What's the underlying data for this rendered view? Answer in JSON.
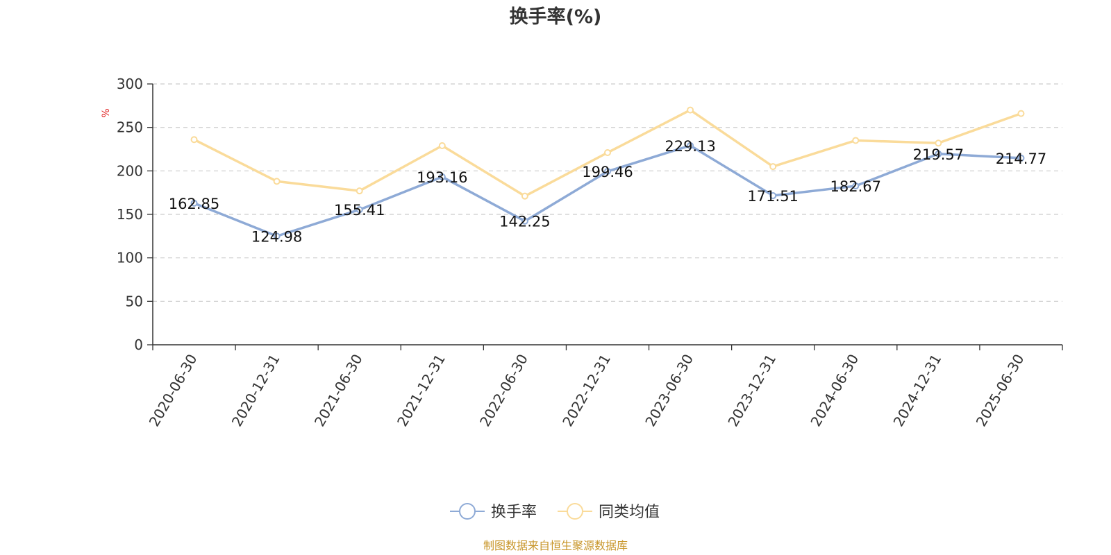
{
  "title": "换手率(%)",
  "source_note": "制图数据来自恒生聚源数据库",
  "colors": {
    "series_turnover": "#8eaad6",
    "series_peer_avg": "#fadb9a",
    "unit_label": "#e02020",
    "source_note": "#c8962a",
    "axis": "#333333",
    "grid": "#cccccc"
  },
  "chart_data": {
    "type": "line",
    "title": "换手率(%)",
    "ylabel": "%",
    "xlabel": "",
    "ylim": [
      0,
      300
    ],
    "yticks": [
      0,
      50,
      100,
      150,
      200,
      250,
      300
    ],
    "grid": true,
    "grid_style": "dashed",
    "legend_position": "bottom",
    "categories": [
      "2020-06-30",
      "2020-12-31",
      "2021-06-30",
      "2021-12-31",
      "2022-06-30",
      "2022-12-31",
      "2023-06-30",
      "2023-12-31",
      "2024-06-30",
      "2024-12-31",
      "2025-06-30"
    ],
    "series": [
      {
        "name": "换手率",
        "color": "#8eaad6",
        "values": [
          162.85,
          124.98,
          155.41,
          193.16,
          142.25,
          199.46,
          229.13,
          171.51,
          182.67,
          219.57,
          214.77
        ],
        "labels": [
          "162.85",
          "124.98",
          "155.41",
          "193.16",
          "142.25",
          "199.46",
          "229.13",
          "171.51",
          "182.67",
          "219.57",
          "214.77"
        ],
        "show_labels": true
      },
      {
        "name": "同类均值",
        "color": "#fadb9a",
        "values": [
          236,
          188,
          177,
          229,
          171,
          221,
          270,
          205,
          235,
          232,
          266
        ],
        "show_labels": false
      }
    ]
  }
}
